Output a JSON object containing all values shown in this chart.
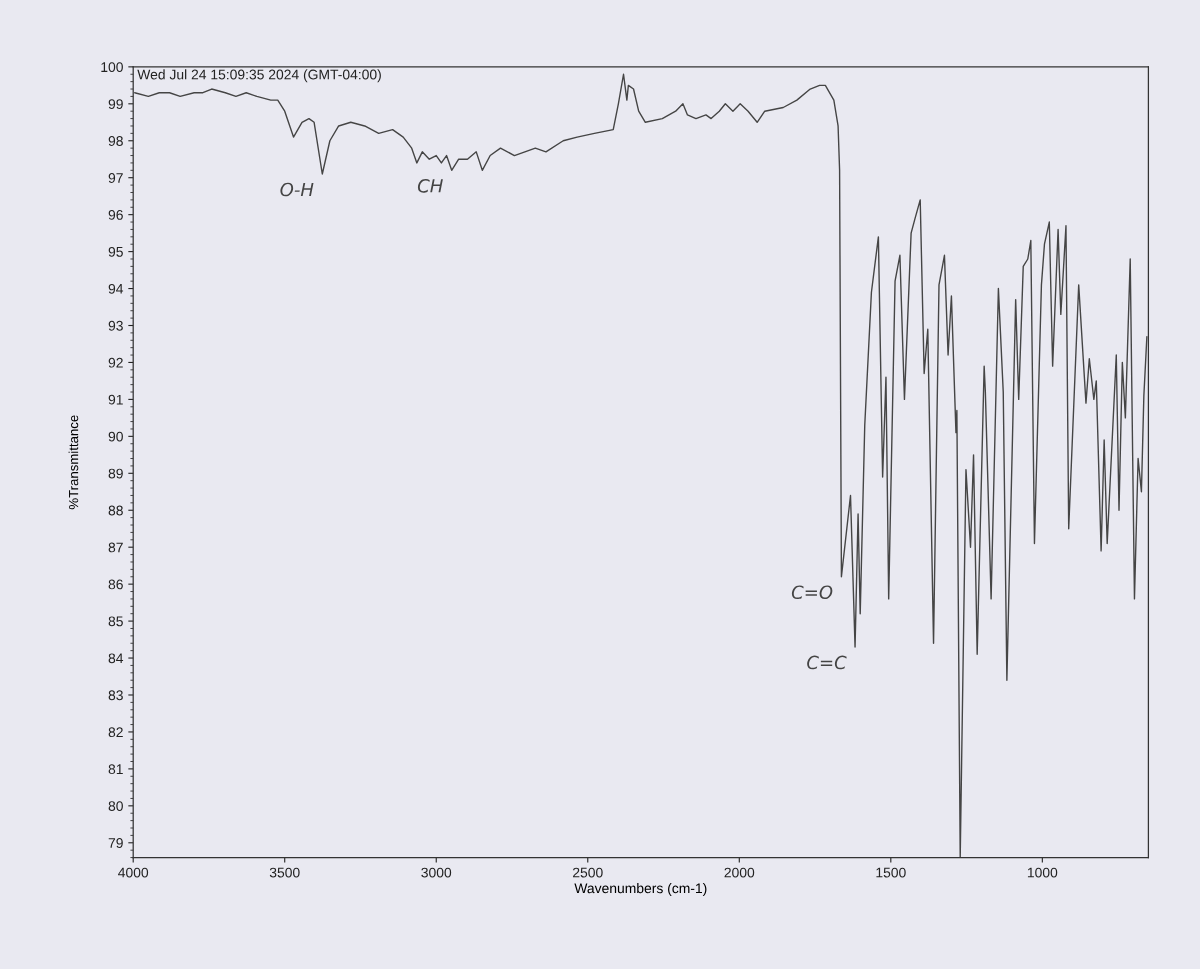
{
  "chart_data": {
    "type": "line",
    "title": "Wed Jul 24 15:09:35 2024 (GMT-04:00)",
    "xlabel": "Wavenumbers (cm-1)",
    "ylabel": "%Transmittance",
    "x": [
      3995,
      3950,
      3914,
      3880,
      3845,
      3799,
      3770,
      3741,
      3696,
      3661,
      3627,
      3592,
      3546,
      3523,
      3500,
      3471,
      3443,
      3420,
      3403,
      3376,
      3351,
      3322,
      3282,
      3236,
      3190,
      3144,
      3109,
      3081,
      3064,
      3046,
      3023,
      3000,
      2983,
      2966,
      2949,
      2926,
      2897,
      2868,
      2848,
      2822,
      2788,
      2742,
      2673,
      2638,
      2581,
      2535,
      2478,
      2416,
      2399,
      2382,
      2371,
      2366,
      2349,
      2332,
      2310,
      2254,
      2210,
      2186,
      2171,
      2143,
      2110,
      2093,
      2066,
      2046,
      2021,
      1997,
      1971,
      1941,
      1916,
      1855,
      1810,
      1766,
      1735,
      1716,
      1688,
      1674,
      1669,
      1663,
      1633,
      1618,
      1608,
      1601,
      1586,
      1564,
      1541,
      1527,
      1516,
      1507,
      1486,
      1470,
      1455,
      1433,
      1420,
      1403,
      1390,
      1378,
      1359,
      1341,
      1323,
      1311,
      1300,
      1285,
      1282,
      1271,
      1252,
      1237,
      1227,
      1215,
      1192,
      1188,
      1169,
      1145,
      1129,
      1117,
      1088,
      1078,
      1063,
      1048,
      1038,
      1026,
      1003,
      993,
      977,
      966,
      948,
      939,
      922,
      913,
      880,
      856,
      845,
      830,
      822,
      806,
      796,
      786,
      756,
      747,
      736,
      726,
      710,
      696,
      684,
      673,
      665,
      655
    ],
    "series": [
      {
        "color": "#454545",
        "values": [
          99.3,
          99.2,
          99.3,
          99.3,
          99.2,
          99.3,
          99.3,
          99.4,
          99.3,
          99.2,
          99.3,
          99.2,
          99.1,
          99.1,
          98.8,
          98.1,
          98.5,
          98.6,
          98.5,
          97.1,
          98.0,
          98.4,
          98.5,
          98.4,
          98.2,
          98.3,
          98.1,
          97.8,
          97.4,
          97.7,
          97.5,
          97.6,
          97.4,
          97.6,
          97.2,
          97.5,
          97.5,
          97.7,
          97.2,
          97.6,
          97.8,
          97.6,
          97.8,
          97.7,
          98.0,
          98.1,
          98.2,
          98.3,
          99.0,
          99.8,
          99.1,
          99.5,
          99.4,
          98.8,
          98.5,
          98.6,
          98.8,
          99.0,
          98.7,
          98.6,
          98.7,
          98.6,
          98.8,
          99.0,
          98.8,
          99.0,
          98.8,
          98.5,
          98.8,
          98.9,
          99.1,
          99.4,
          99.5,
          99.5,
          99.1,
          98.4,
          97.2,
          86.2,
          88.4,
          84.3,
          87.9,
          85.2,
          90.3,
          93.9,
          95.4,
          88.9,
          91.6,
          85.6,
          94.2,
          94.9,
          91.0,
          95.5,
          95.9,
          96.4,
          91.7,
          92.9,
          84.4,
          94.1,
          94.9,
          92.2,
          93.8,
          90.1,
          90.7,
          78.6,
          89.1,
          87.0,
          89.5,
          84.1,
          91.9,
          91.2,
          85.6,
          94.0,
          91.2,
          83.4,
          93.7,
          91.0,
          94.6,
          94.8,
          95.3,
          87.1,
          94.1,
          95.2,
          95.8,
          91.9,
          95.6,
          93.3,
          95.7,
          87.5,
          94.1,
          90.9,
          92.1,
          91.0,
          91.5,
          86.9,
          89.9,
          87.1,
          92.2,
          88.0,
          92.0,
          90.5,
          94.8,
          85.6,
          89.4,
          88.5,
          91.1,
          92.7
        ]
      }
    ],
    "xlim": [
      4000,
      650
    ],
    "xticks": [
      4000,
      3500,
      3000,
      2500,
      2000,
      1500,
      1000
    ],
    "ylim": [
      78.6,
      100
    ],
    "yticks": [
      79,
      80,
      81,
      82,
      83,
      84,
      85,
      86,
      87,
      88,
      89,
      90,
      91,
      92,
      93,
      94,
      95,
      96,
      97,
      98,
      99,
      100
    ],
    "grid": false,
    "marker": "none",
    "line_style": "solid",
    "annotations": [
      {
        "text": "O-H",
        "x": 3376,
        "y": 97.1
      },
      {
        "text": "CH",
        "x": 2949,
        "y": 97.2
      },
      {
        "text": "C=O",
        "x": 1663,
        "y": 86.2
      },
      {
        "text": "C=C",
        "x": 1618,
        "y": 84.3
      }
    ]
  }
}
